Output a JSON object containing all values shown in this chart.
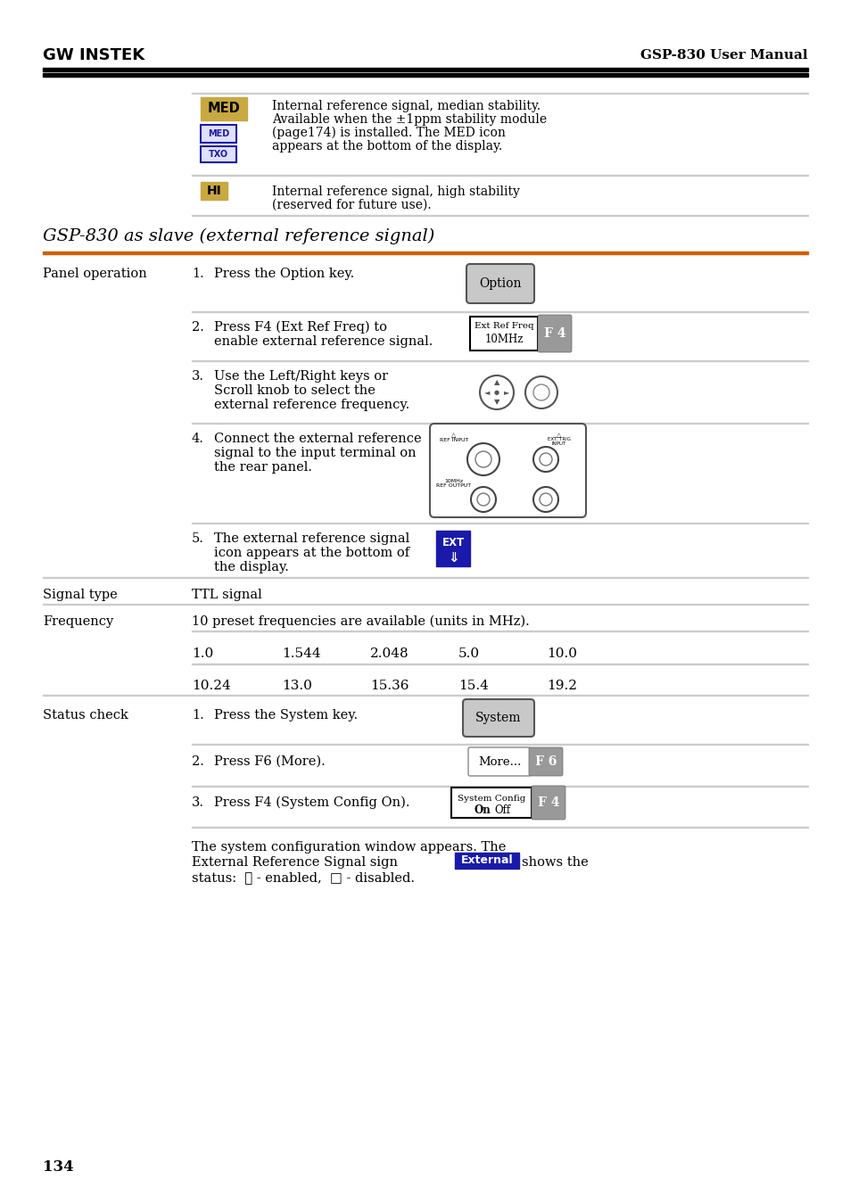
{
  "page_number": "134",
  "header_left": "GW INSTEK",
  "header_right": "GSP-830 User Manual",
  "section_title": "GSP-830 as slave (external reference signal)",
  "bg_color": "#ffffff",
  "section_line_color": "#d45f00",
  "med_bg": "#c8a840",
  "hi_bg": "#c8a840",
  "blue_color": "#1a1aaa",
  "gray_btn": "#c8c8c8",
  "dark_gray_btn": "#999999",
  "frequency_row1": [
    "1.0",
    "1.544",
    "2.048",
    "5.0",
    "10.0"
  ],
  "frequency_row2": [
    "10.24",
    "13.0",
    "15.36",
    "15.4",
    "19.2"
  ]
}
